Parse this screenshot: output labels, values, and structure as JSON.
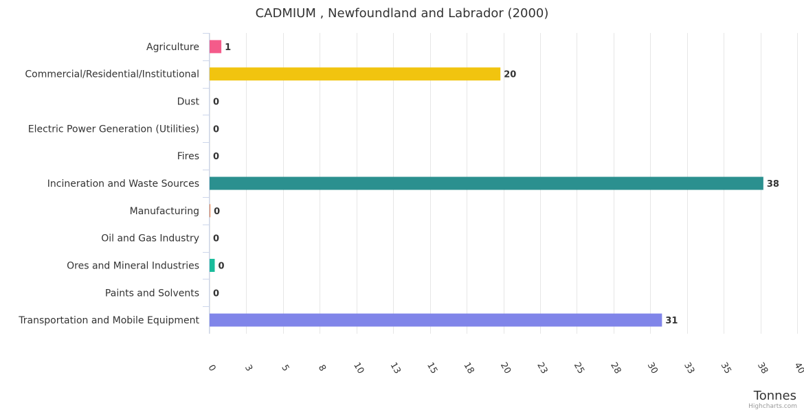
{
  "chart_data": {
    "type": "bar",
    "orientation": "horizontal",
    "title": "CADMIUM , Newfoundland and Labrador (2000)",
    "categories": [
      "Agriculture",
      "Commercial/Residential/Institutional",
      "Dust",
      "Electric Power Generation (Utilities)",
      "Fires",
      "Incineration and Waste Sources",
      "Manufacturing",
      "Oil and Gas Industry",
      "Ores and Mineral Industries",
      "Paints and Solvents",
      "Transportation and Mobile Equipment"
    ],
    "values": [
      0.8,
      19.8,
      0,
      0,
      0,
      37.7,
      0.05,
      0,
      0.35,
      0,
      30.8
    ],
    "data_labels": [
      "1",
      "20",
      "0",
      "0",
      "0",
      "38",
      "0",
      "0",
      "0",
      "0",
      "31"
    ],
    "colors": [
      "#f45b8a",
      "#f1c40f",
      "#2ecc71",
      "#e67e22",
      "#9b59b6",
      "#2b908f",
      "#e3743c",
      "#90ed7d",
      "#1abc9c",
      "#7cb5ec",
      "#8085e9"
    ],
    "xlabel": "",
    "ylabel": "Tonnes",
    "xlim": [
      0,
      40
    ],
    "ticks": [
      0,
      2.5,
      5,
      7.5,
      10,
      12.5,
      15,
      17.5,
      20,
      22.5,
      25,
      27.5,
      30,
      32.5,
      35,
      37.5,
      40
    ],
    "tick_labels": [
      "0",
      "3",
      "5",
      "8",
      "10",
      "13",
      "15",
      "18",
      "20",
      "23",
      "25",
      "28",
      "30",
      "33",
      "35",
      "38",
      "40"
    ],
    "grid": true,
    "credits": "Highcharts.com"
  }
}
